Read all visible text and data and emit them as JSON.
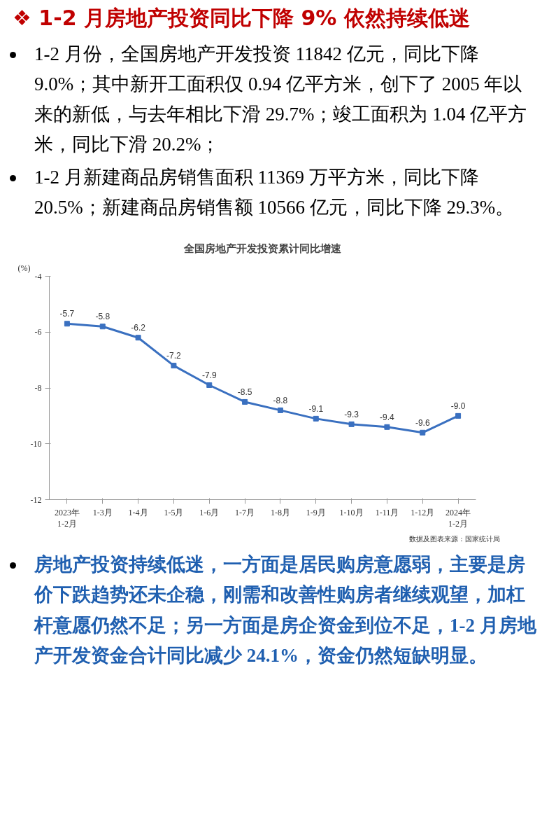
{
  "chart_data": {
    "type": "line",
    "title": "全国房地产开发投资累计同比增速",
    "ylabel": "(%)",
    "categories": [
      "2023年\n1-2月",
      "1-3月",
      "1-4月",
      "1-5月",
      "1-6月",
      "1-7月",
      "1-8月",
      "1-9月",
      "1-10月",
      "1-11月",
      "1-12月",
      "2024年\n1-2月"
    ],
    "series": [
      {
        "color": "#3a70c0",
        "values": [
          -5.7,
          -5.8,
          -6.2,
          -7.2,
          -7.9,
          -8.5,
          -8.8,
          -9.1,
          -9.3,
          -9.4,
          -9.6,
          -9.0
        ]
      }
    ],
    "value_labels": [
      "-5.7",
      "-5.8",
      "-6.2",
      "-7.2",
      "-7.9",
      "-8.5",
      "-8.8",
      "-9.1",
      "-9.3",
      "-9.4",
      "-9.6",
      "-9.0"
    ],
    "ylim": [
      -12,
      -4
    ],
    "yticks": [
      -4,
      -6,
      -8,
      -10,
      -12
    ],
    "grid": false,
    "marker": "square",
    "line_style": "solid",
    "annotations": [
      "❖ 1-2 月房地产投资同比下降 9%  依然持续低迷",
      "1-2 月份，全国房地产开发投资 11842 亿元，同比下降 9.0%；其中新开工面积仅 0.94 亿平方米，创下了 2005 年以来的新低，与去年相比下滑 29.7%；竣工面积为 1.04 亿平方米，同比下滑 20.2%；",
      "1-2 月新建商品房销售面积 11369 万平方米，同比下降 20.5%；新建商品房销售额 10566 亿元，同比下降 29.3%。",
      "数据及图表来源：国家统计局",
      "房地产投资持续低迷，一方面是居民购房意愿弱，主要是房价下跌趋势还未企稳，刚需和改善性购房者继续观望，加杠杆意愿仍然不足；另一方面是房企资金到位不足，1-2 月房地产开发资金合计同比减少 24.1%，资金仍然短缺明显。"
    ]
  }
}
